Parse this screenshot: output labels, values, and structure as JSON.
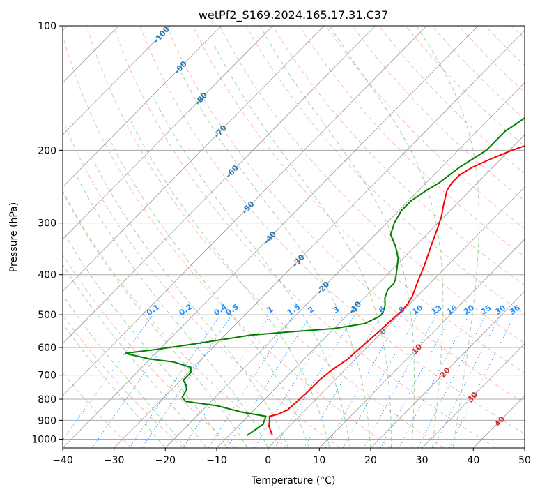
{
  "chart_data": {
    "type": "line",
    "subtype": "skew-t log-p diagram",
    "title": "wetPf2_S169.2024.165.17.31.C37",
    "xlabel": "Temperature (°C)",
    "ylabel": "Pressure (hPa)",
    "xlim": [
      -40,
      50
    ],
    "ylim": [
      1050,
      100
    ],
    "y_scale": "log",
    "x_ticks": [
      "−40",
      "−30",
      "−20",
      "−10",
      "0",
      "10",
      "20",
      "30",
      "40",
      "50"
    ],
    "y_ticks": [
      "100",
      "200",
      "300",
      "400",
      "500",
      "600",
      "700",
      "800",
      "900",
      "1000"
    ],
    "grid": true,
    "isotherm_labels": [
      "-100",
      "-90",
      "-80",
      "-70",
      "-60",
      "-50",
      "-40",
      "-30",
      "-20",
      "-10",
      "0",
      "10",
      "20",
      "30",
      "40"
    ],
    "mixing_ratio_labels": [
      "0.1",
      "0.2",
      "0.4",
      "0.5",
      "1",
      "1.5",
      "2",
      "3",
      "4",
      "6",
      "8",
      "10",
      "13",
      "16",
      "20",
      "25",
      "30",
      "36"
    ],
    "colors": {
      "temperature": "#ff0000",
      "dewpoint": "#008000",
      "dry_adiabat": "#fa8072",
      "moist_adiabat": "#2ca02c",
      "mixing_ratio": "#1e90ff",
      "isotherm_label_cold": "#1f77b4",
      "isotherm_label_warm": "#d62728",
      "isotherm_label_zero": "#808080",
      "isotherm_line": "#999999",
      "isobar": "#aaaaaa"
    },
    "series": [
      {
        "role": "temperature",
        "points": [
          [
            -1.5,
            980
          ],
          [
            -4,
            930
          ],
          [
            -5,
            900
          ],
          [
            -5.8,
            880
          ],
          [
            -4.5,
            870
          ],
          [
            -3.5,
            850
          ],
          [
            -3.2,
            800
          ],
          [
            -3,
            760
          ],
          [
            -3,
            720
          ],
          [
            -2.5,
            680
          ],
          [
            -1.5,
            640
          ],
          [
            -1.2,
            600
          ],
          [
            -0.8,
            560
          ],
          [
            -0.5,
            520
          ],
          [
            -0.2,
            490
          ],
          [
            -0.4,
            470
          ],
          [
            -1,
            450
          ],
          [
            -2.5,
            420
          ],
          [
            -4.5,
            380
          ],
          [
            -7,
            340
          ],
          [
            -9,
            310
          ],
          [
            -10.5,
            290
          ],
          [
            -12.5,
            270
          ],
          [
            -14.5,
            250
          ],
          [
            -15,
            240
          ],
          [
            -15,
            230
          ],
          [
            -14,
            220
          ],
          [
            -12,
            210
          ],
          [
            -9.5,
            200
          ],
          [
            -6,
            190
          ],
          [
            -2,
            180
          ],
          [
            2,
            170
          ],
          [
            6,
            160
          ],
          [
            9,
            150
          ],
          [
            12,
            140
          ],
          [
            14,
            133
          ],
          [
            16,
            125
          ],
          [
            18,
            117
          ],
          [
            20.5,
            109
          ],
          [
            22,
            104
          ],
          [
            23,
            100
          ]
        ]
      },
      {
        "role": "dewpoint",
        "points": [
          [
            -6.5,
            980
          ],
          [
            -6,
            950
          ],
          [
            -5.5,
            920
          ],
          [
            -6,
            900
          ],
          [
            -6.5,
            880
          ],
          [
            -12,
            860
          ],
          [
            -18,
            830
          ],
          [
            -25,
            810
          ],
          [
            -26.5,
            790
          ],
          [
            -27,
            760
          ],
          [
            -28,
            740
          ],
          [
            -29.5,
            720
          ],
          [
            -29.5,
            690
          ],
          [
            -30.5,
            670
          ],
          [
            -35,
            650
          ],
          [
            -40,
            640
          ],
          [
            -46,
            620
          ],
          [
            -40,
            605
          ],
          [
            -35,
            590
          ],
          [
            -30,
            575
          ],
          [
            -25,
            560
          ],
          [
            -18,
            550
          ],
          [
            -10,
            540
          ],
          [
            -5,
            525
          ],
          [
            -3.5,
            505
          ],
          [
            -3.5,
            495
          ],
          [
            -4.5,
            475
          ],
          [
            -6,
            455
          ],
          [
            -7,
            435
          ],
          [
            -7,
            420
          ],
          [
            -7.5,
            410
          ],
          [
            -9,
            390
          ],
          [
            -11,
            365
          ],
          [
            -14,
            340
          ],
          [
            -17,
            320
          ],
          [
            -18.5,
            300
          ],
          [
            -19.5,
            280
          ],
          [
            -19.5,
            265
          ],
          [
            -18.5,
            250
          ],
          [
            -17.5,
            240
          ],
          [
            -17,
            230
          ],
          [
            -16.5,
            220
          ],
          [
            -15.5,
            210
          ],
          [
            -14.5,
            200
          ],
          [
            -14.5,
            190
          ],
          [
            -14.5,
            180
          ],
          [
            -13.5,
            170
          ],
          [
            -12.5,
            160
          ],
          [
            -11,
            150
          ],
          [
            -8,
            140
          ],
          [
            -5,
            130
          ],
          [
            -2,
            120
          ],
          [
            0.5,
            110
          ],
          [
            2,
            105
          ],
          [
            3,
            100
          ]
        ]
      }
    ]
  }
}
